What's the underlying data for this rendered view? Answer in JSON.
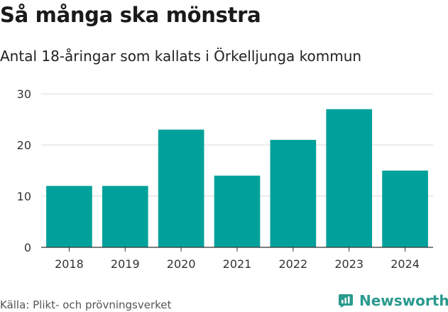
{
  "header": {
    "title": "Så många ska mönstra",
    "subtitle": "Antal 18-åringar som kallats i Örkelljunga kommun"
  },
  "footer": {
    "source": "Källa: Plikt- och prövningsverket",
    "brand": "Newsworthy",
    "brand_icon": "bar-chart-logo-icon"
  },
  "colors": {
    "bar": "#00a19a",
    "grid": "#d9d9d9",
    "axis": "#333333",
    "brand": "#2a9a8e"
  },
  "chart_data": {
    "type": "bar",
    "title": "Så många ska mönstra",
    "subtitle": "Antal 18-åringar som kallats i Örkelljunga kommun",
    "categories": [
      "2018",
      "2019",
      "2020",
      "2021",
      "2022",
      "2023",
      "2024"
    ],
    "values": [
      12,
      12,
      23,
      14,
      21,
      27,
      15
    ],
    "xlabel": "",
    "ylabel": "",
    "ylim": [
      0,
      30
    ],
    "yticks": [
      0,
      10,
      20,
      30
    ],
    "grid": true,
    "legend": "none"
  }
}
